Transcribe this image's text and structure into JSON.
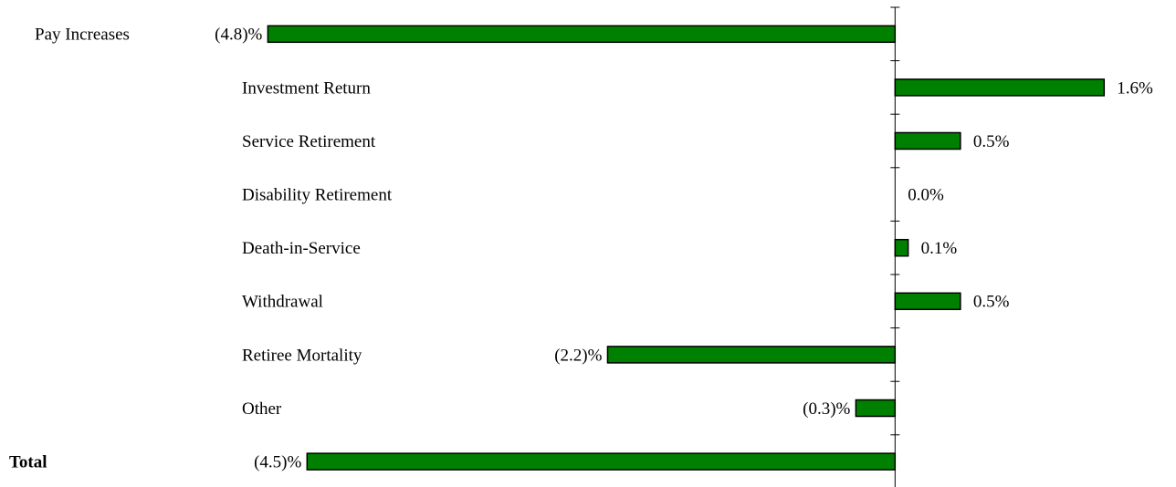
{
  "chart_data": {
    "type": "barh",
    "categories": [
      "Pay Increases",
      "Investment Return",
      "Service Retirement",
      "Disability Retirement",
      "Death-in-Service",
      "Withdrawal",
      "Retiree Mortality",
      "Other",
      "Total"
    ],
    "values": [
      -4.8,
      1.6,
      0.5,
      0.0,
      0.1,
      0.5,
      -2.2,
      -0.3,
      -4.5
    ],
    "value_labels": [
      "(4.8)%",
      "1.6%",
      "0.5%",
      "0.0%",
      "0.1%",
      "0.5%",
      "(2.2)%",
      "(0.3)%",
      "(4.5)%"
    ],
    "color": "#008000",
    "xlim": [
      -6.85,
      2.15
    ]
  }
}
